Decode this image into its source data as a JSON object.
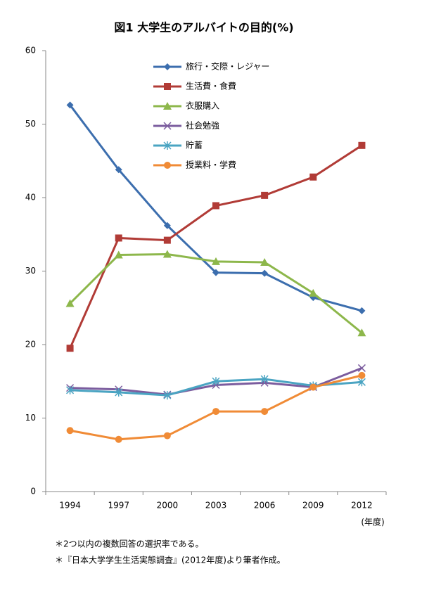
{
  "chart_data": {
    "type": "line",
    "title": "図1 大学生のアルバイトの目的(%)",
    "categories": [
      "1994",
      "1997",
      "2000",
      "2003",
      "2006",
      "2009",
      "2012"
    ],
    "x_unit_label": "(年度)",
    "series": [
      {
        "name": "旅行・交際・レジャー",
        "color": "#3c6eae",
        "marker": "diamond",
        "values": [
          52.6,
          43.8,
          36.2,
          29.8,
          29.7,
          26.4,
          24.6
        ]
      },
      {
        "name": "生活費・食費",
        "color": "#b13b36",
        "marker": "square",
        "values": [
          19.5,
          34.5,
          34.2,
          38.9,
          40.3,
          42.8,
          47.1
        ]
      },
      {
        "name": "衣服購入",
        "color": "#8db74b",
        "marker": "triangle",
        "values": [
          25.6,
          32.2,
          32.3,
          31.3,
          31.2,
          27.0,
          21.6
        ]
      },
      {
        "name": "社会勉強",
        "color": "#7b5c9e",
        "marker": "x",
        "values": [
          14.1,
          13.9,
          13.2,
          14.5,
          14.8,
          14.2,
          16.8
        ]
      },
      {
        "name": "貯蓄",
        "color": "#4aa4c2",
        "marker": "asterisk",
        "values": [
          13.8,
          13.5,
          13.1,
          15.0,
          15.3,
          14.4,
          14.9
        ]
      },
      {
        "name": "授業料・学費",
        "color": "#f08b36",
        "marker": "circle",
        "values": [
          8.3,
          7.1,
          7.6,
          10.9,
          10.9,
          14.2,
          15.8
        ]
      }
    ],
    "ylim": [
      0,
      60
    ],
    "yticks": [
      0,
      10,
      20,
      30,
      40,
      50,
      60
    ],
    "grid": false,
    "notes": [
      "＊2つ以内の複数回答の選択率である。",
      "＊『日本大学学生生活実態調査』(2012年度)より筆者作成。"
    ]
  }
}
